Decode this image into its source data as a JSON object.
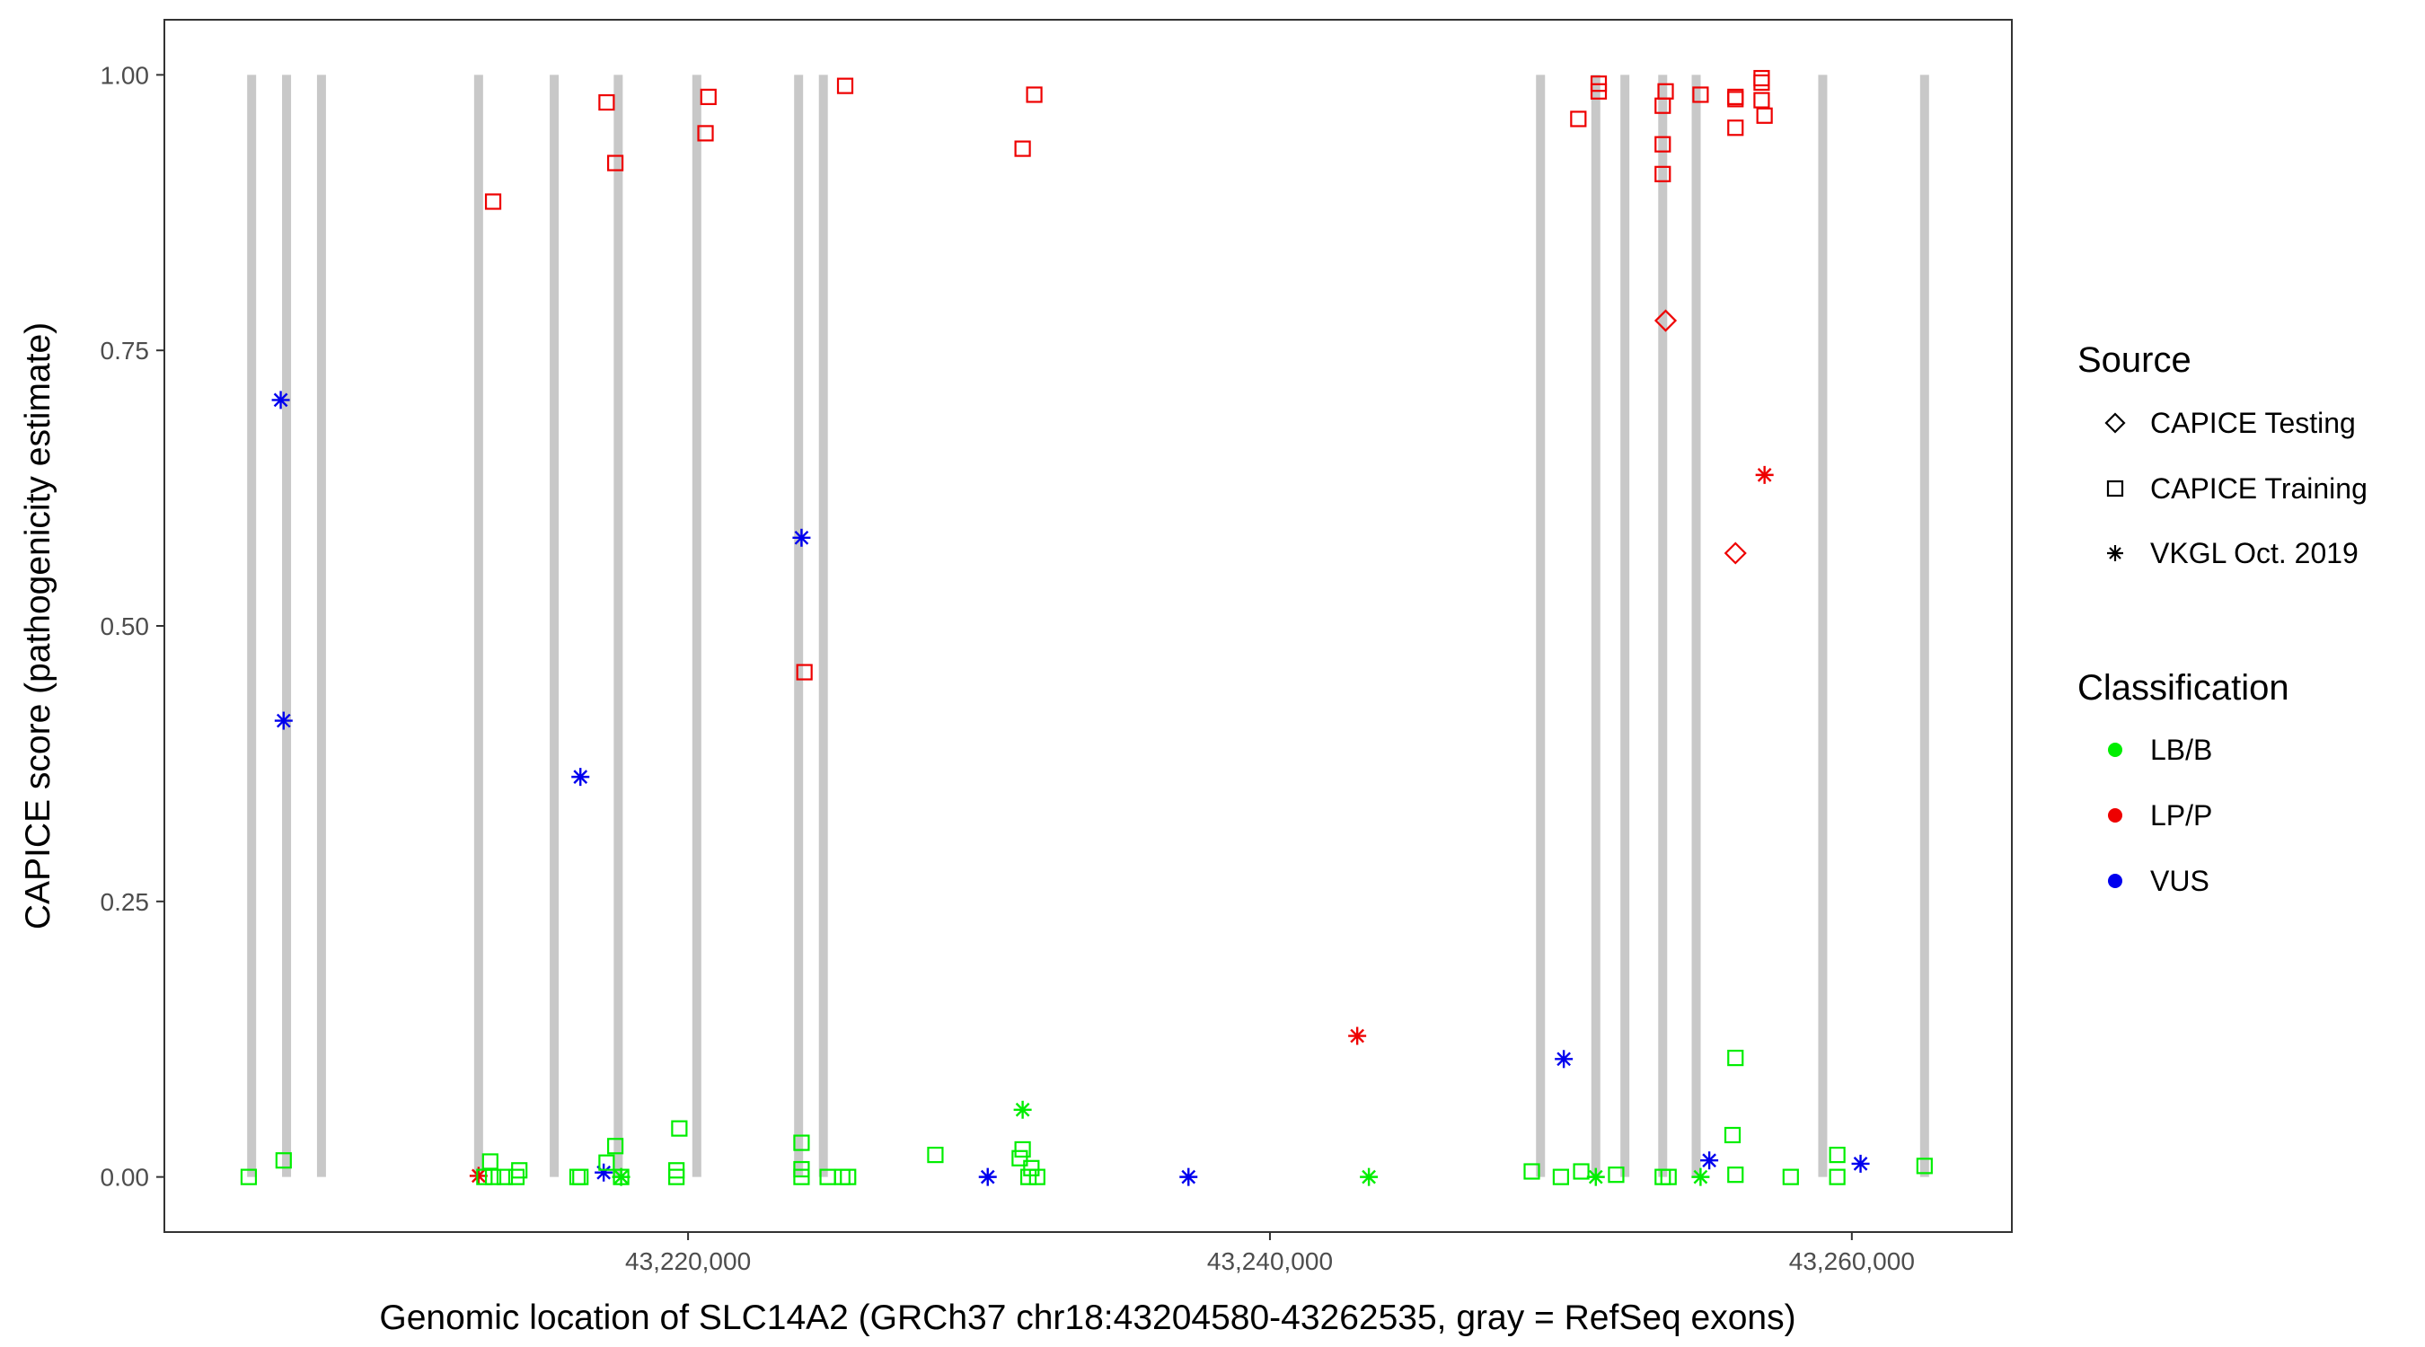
{
  "chart_data": {
    "type": "scatter",
    "xlabel": "Genomic location of SLC14A2 (GRCh37 chr18:43204580-43262535, gray = RefSeq exons)",
    "ylabel": "CAPICE score (pathogenicity estimate)",
    "xlim": [
      43202000,
      43265500
    ],
    "ylim": [
      -0.05,
      1.05
    ],
    "x_ticks": [
      43220000,
      43240000,
      43260000
    ],
    "x_tick_labels": [
      "43,220,000",
      "43,240,000",
      "43,260,000"
    ],
    "y_ticks": [
      0,
      0.25,
      0.5,
      0.75,
      1
    ],
    "y_tick_labels": [
      "0.00",
      "0.25",
      "0.50",
      "0.75",
      "1.00"
    ],
    "exons": [
      43205000,
      43206200,
      43207400,
      43212800,
      43215400,
      43217600,
      43220300,
      43223800,
      43224650,
      43249300,
      43251200,
      43252200,
      43253500,
      43254650,
      43259000,
      43262500
    ],
    "legend": {
      "source_title": "Source",
      "sources": [
        {
          "key": "diamond",
          "label": "CAPICE Testing"
        },
        {
          "key": "square",
          "label": "CAPICE Training"
        },
        {
          "key": "star",
          "label": "VKGL Oct. 2019"
        }
      ],
      "classification_title": "Classification",
      "classes": [
        {
          "key": "LB/B",
          "label": "LB/B",
          "color": "#00ee00"
        },
        {
          "key": "LP/P",
          "label": "LP/P",
          "color": "#ee0000"
        },
        {
          "key": "VUS",
          "label": "VUS",
          "color": "#0000ee"
        }
      ]
    },
    "series": [
      {
        "name": "CAPICE Training LP/P",
        "shape": "square",
        "color": "#ee0000",
        "points": [
          [
            43213300,
            0.885
          ],
          [
            43217200,
            0.975
          ],
          [
            43217500,
            0.92
          ],
          [
            43220700,
            0.98
          ],
          [
            43220600,
            0.947
          ],
          [
            43225400,
            0.99
          ],
          [
            43224000,
            0.458
          ],
          [
            43231500,
            0.933
          ],
          [
            43231900,
            0.982
          ],
          [
            43250600,
            0.96
          ],
          [
            43251300,
            0.992
          ],
          [
            43251300,
            0.985
          ],
          [
            43253600,
            0.985
          ],
          [
            43253500,
            0.972
          ],
          [
            43253500,
            0.937
          ],
          [
            43253500,
            0.91
          ],
          [
            43254800,
            0.982
          ],
          [
            43256000,
            0.98
          ],
          [
            43256000,
            0.978
          ],
          [
            43256000,
            0.952
          ],
          [
            43256900,
            0.997
          ],
          [
            43256900,
            0.993
          ],
          [
            43256900,
            0.977
          ],
          [
            43257000,
            0.963
          ]
        ]
      },
      {
        "name": "CAPICE Testing LP/P",
        "shape": "diamond",
        "color": "#ee0000",
        "points": [
          [
            43253600,
            0.777
          ],
          [
            43256000,
            0.566
          ]
        ]
      },
      {
        "name": "VKGL LP/P",
        "shape": "star",
        "color": "#ee0000",
        "points": [
          [
            43212800,
            0.001
          ],
          [
            43243000,
            0.128
          ],
          [
            43257000,
            0.637
          ]
        ]
      },
      {
        "name": "VKGL VUS",
        "shape": "star",
        "color": "#0000ee",
        "points": [
          [
            43206000,
            0.705
          ],
          [
            43206100,
            0.414
          ],
          [
            43216300,
            0.363
          ],
          [
            43223900,
            0.58
          ],
          [
            43217100,
            0.004
          ],
          [
            43230300,
            0.0
          ],
          [
            43237200,
            0.0
          ],
          [
            43250100,
            0.107
          ],
          [
            43255100,
            0.015
          ],
          [
            43260300,
            0.012
          ]
        ]
      },
      {
        "name": "VKGL LB/B",
        "shape": "star",
        "color": "#00ee00",
        "points": [
          [
            43231500,
            0.061
          ],
          [
            43243400,
            0.0
          ],
          [
            43251200,
            0.0
          ],
          [
            43254800,
            0.0
          ],
          [
            43217700,
            0.0
          ]
        ]
      },
      {
        "name": "CAPICE Training LB/B",
        "shape": "square",
        "color": "#00ee00",
        "points": [
          [
            43204900,
            0.0
          ],
          [
            43206100,
            0.015
          ],
          [
            43213200,
            0.014
          ],
          [
            43213000,
            0.0
          ],
          [
            43213300,
            0.0
          ],
          [
            43213700,
            0.0
          ],
          [
            43214200,
            0.006
          ],
          [
            43214100,
            0.0
          ],
          [
            43216200,
            0.0
          ],
          [
            43216300,
            0.0
          ],
          [
            43217500,
            0.028
          ],
          [
            43217200,
            0.013
          ],
          [
            43217700,
            0.0
          ],
          [
            43219700,
            0.044
          ],
          [
            43219600,
            0.006
          ],
          [
            43219600,
            0.0
          ],
          [
            43223900,
            0.031
          ],
          [
            43223900,
            0.007
          ],
          [
            43223900,
            0.0
          ],
          [
            43224800,
            0.0
          ],
          [
            43225300,
            0.0
          ],
          [
            43225500,
            0.0
          ],
          [
            43228500,
            0.02
          ],
          [
            43231500,
            0.025
          ],
          [
            43231400,
            0.017
          ],
          [
            43231800,
            0.008
          ],
          [
            43231700,
            0.0
          ],
          [
            43232000,
            0.0
          ],
          [
            43249000,
            0.005
          ],
          [
            43250000,
            0.0
          ],
          [
            43250700,
            0.005
          ],
          [
            43251900,
            0.002
          ],
          [
            43253500,
            0.0
          ],
          [
            43253700,
            0.0
          ],
          [
            43256000,
            0.108
          ],
          [
            43255900,
            0.038
          ],
          [
            43256000,
            0.002
          ],
          [
            43257900,
            0.0
          ],
          [
            43259500,
            0.02
          ],
          [
            43259500,
            0.0
          ],
          [
            43262500,
            0.01
          ]
        ]
      }
    ]
  }
}
